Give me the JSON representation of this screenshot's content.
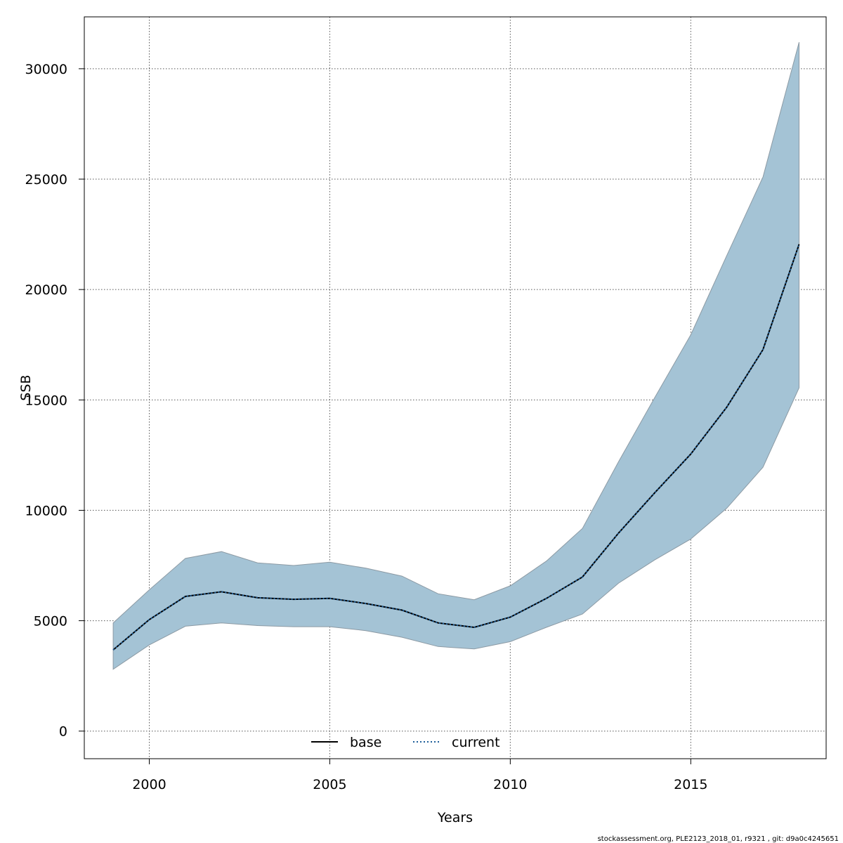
{
  "chart_data": {
    "type": "area",
    "xlabel": "Years",
    "ylabel": "SSB",
    "xlim": [
      1998.2,
      2018.75
    ],
    "ylim": [
      -1250,
      32350
    ],
    "x_ticks": [
      2000,
      2005,
      2010,
      2015
    ],
    "y_ticks": [
      0,
      5000,
      10000,
      15000,
      20000,
      25000,
      30000
    ],
    "grid": true,
    "legend_position": "bottom-center",
    "x": [
      1999,
      2000,
      2001,
      2002,
      2003,
      2004,
      2005,
      2006,
      2007,
      2008,
      2009,
      2010,
      2011,
      2012,
      2013,
      2014,
      2015,
      2016,
      2017,
      2018
    ],
    "band": {
      "lower": [
        2800,
        3900,
        4750,
        4900,
        4780,
        4730,
        4730,
        4550,
        4250,
        3830,
        3720,
        4050,
        4700,
        5300,
        6700,
        7750,
        8700,
        10100,
        11950,
        15550
      ],
      "upper": [
        4900,
        6400,
        7820,
        8130,
        7620,
        7500,
        7650,
        7380,
        7020,
        6220,
        5950,
        6580,
        7700,
        9180,
        12200,
        15100,
        17950,
        21550,
        25100,
        31200
      ],
      "fill_color": "#a4c3d5",
      "edge_color": "#8c9aa4"
    },
    "series": [
      {
        "name": "base",
        "style": "solid",
        "color": "#000000",
        "values": [
          3680,
          5050,
          6100,
          6310,
          6040,
          5970,
          6010,
          5780,
          5480,
          4900,
          4700,
          5160,
          6010,
          6980,
          8970,
          10790,
          12550,
          14680,
          17280,
          22050
        ]
      },
      {
        "name": "current",
        "style": "dotted",
        "color": "#1f5f9a",
        "values": [
          3680,
          5050,
          6100,
          6310,
          6040,
          5970,
          6010,
          5780,
          5480,
          4900,
          4700,
          5160,
          6010,
          6980,
          8970,
          10790,
          12550,
          14680,
          17280,
          22050
        ]
      }
    ]
  },
  "footer": "stockassessment.org, PLE2123_2018_01, r9321 , git: d9a0c4245651"
}
